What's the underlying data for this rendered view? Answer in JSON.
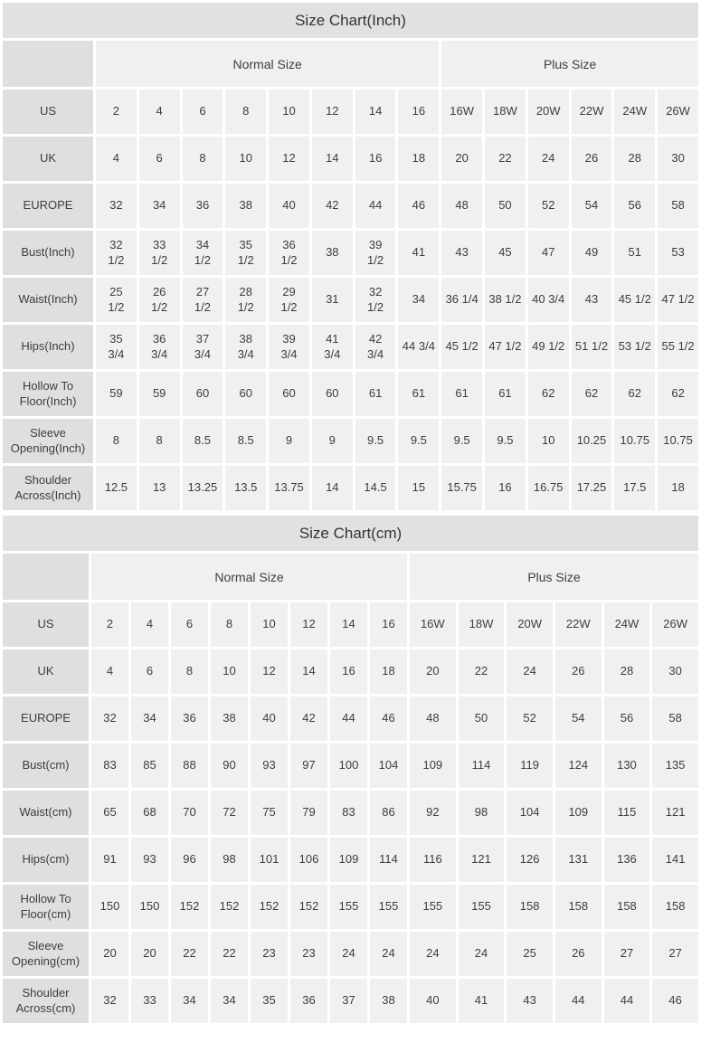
{
  "colors": {
    "title_bg": "#e1e1e1",
    "label_bg": "#dfdfdf",
    "cell_bg": "#f0f0f0",
    "gap": "#ffffff",
    "text": "#3d3d3d"
  },
  "tables": [
    {
      "title": "Size Chart(Inch)",
      "group_headers": [
        {
          "label": "Normal Size",
          "span": 8
        },
        {
          "label": "Plus Size",
          "span": 6
        }
      ],
      "rows": [
        {
          "label": "US",
          "values": [
            "2",
            "4",
            "6",
            "8",
            "10",
            "12",
            "14",
            "16",
            "16W",
            "18W",
            "20W",
            "22W",
            "24W",
            "26W"
          ]
        },
        {
          "label": "UK",
          "values": [
            "4",
            "6",
            "8",
            "10",
            "12",
            "14",
            "16",
            "18",
            "20",
            "22",
            "24",
            "26",
            "28",
            "30"
          ]
        },
        {
          "label": "EUROPE",
          "values": [
            "32",
            "34",
            "36",
            "38",
            "40",
            "42",
            "44",
            "46",
            "48",
            "50",
            "52",
            "54",
            "56",
            "58"
          ]
        },
        {
          "label": "Bust(Inch)",
          "values": [
            "32\n1/2",
            "33\n1/2",
            "34\n1/2",
            "35\n1/2",
            "36\n1/2",
            "38",
            "39\n1/2",
            "41",
            "43",
            "45",
            "47",
            "49",
            "51",
            "53"
          ]
        },
        {
          "label": "Waist(Inch)",
          "values": [
            "25\n1/2",
            "26\n1/2",
            "27\n1/2",
            "28\n1/2",
            "29\n1/2",
            "31",
            "32\n1/2",
            "34",
            "36 1/4",
            "38 1/2",
            "40 3/4",
            "43",
            "45 1/2",
            "47 1/2"
          ]
        },
        {
          "label": "Hips(Inch)",
          "values": [
            "35\n3/4",
            "36\n3/4",
            "37\n3/4",
            "38\n3/4",
            "39\n3/4",
            "41\n3/4",
            "42\n3/4",
            "44 3/4",
            "45 1/2",
            "47 1/2",
            "49 1/2",
            "51 1/2",
            "53 1/2",
            "55 1/2"
          ]
        },
        {
          "label": "Hollow To Floor(Inch)",
          "values": [
            "59",
            "59",
            "60",
            "60",
            "60",
            "60",
            "61",
            "61",
            "61",
            "61",
            "62",
            "62",
            "62",
            "62"
          ]
        },
        {
          "label": "Sleeve Opening(Inch)",
          "values": [
            "8",
            "8",
            "8.5",
            "8.5",
            "9",
            "9",
            "9.5",
            "9.5",
            "9.5",
            "9.5",
            "10",
            "10.25",
            "10.75",
            "10.75"
          ]
        },
        {
          "label": "Shoulder Across(Inch)",
          "values": [
            "12.5",
            "13",
            "13.25",
            "13.5",
            "13.75",
            "14",
            "14.5",
            "15",
            "15.75",
            "16",
            "16.75",
            "17.25",
            "17.5",
            "18"
          ]
        }
      ]
    },
    {
      "title": "Size Chart(cm)",
      "group_headers": [
        {
          "label": "Normal Size",
          "span": 8
        },
        {
          "label": "Plus Size",
          "span": 6
        }
      ],
      "rows": [
        {
          "label": "US",
          "values": [
            "2",
            "4",
            "6",
            "8",
            "10",
            "12",
            "14",
            "16",
            "16W",
            "18W",
            "20W",
            "22W",
            "24W",
            "26W"
          ]
        },
        {
          "label": "UK",
          "values": [
            "4",
            "6",
            "8",
            "10",
            "12",
            "14",
            "16",
            "18",
            "20",
            "22",
            "24",
            "26",
            "28",
            "30"
          ]
        },
        {
          "label": "EUROPE",
          "values": [
            "32",
            "34",
            "36",
            "38",
            "40",
            "42",
            "44",
            "46",
            "48",
            "50",
            "52",
            "54",
            "56",
            "58"
          ]
        },
        {
          "label": "Bust(cm)",
          "values": [
            "83",
            "85",
            "88",
            "90",
            "93",
            "97",
            "100",
            "104",
            "109",
            "114",
            "119",
            "124",
            "130",
            "135"
          ]
        },
        {
          "label": "Waist(cm)",
          "values": [
            "65",
            "68",
            "70",
            "72",
            "75",
            "79",
            "83",
            "86",
            "92",
            "98",
            "104",
            "109",
            "115",
            "121"
          ]
        },
        {
          "label": "Hips(cm)",
          "values": [
            "91",
            "93",
            "96",
            "98",
            "101",
            "106",
            "109",
            "114",
            "116",
            "121",
            "126",
            "131",
            "136",
            "141"
          ]
        },
        {
          "label": "Hollow To Floor(cm)",
          "values": [
            "150",
            "150",
            "152",
            "152",
            "152",
            "152",
            "155",
            "155",
            "155",
            "155",
            "158",
            "158",
            "158",
            "158"
          ]
        },
        {
          "label": "Sleeve Opening(cm)",
          "values": [
            "20",
            "20",
            "22",
            "22",
            "23",
            "23",
            "24",
            "24",
            "24",
            "24",
            "25",
            "26",
            "27",
            "27"
          ]
        },
        {
          "label": "Shoulder Across(cm)",
          "values": [
            "32",
            "33",
            "34",
            "34",
            "35",
            "36",
            "37",
            "38",
            "40",
            "41",
            "43",
            "44",
            "44",
            "46"
          ]
        }
      ]
    }
  ]
}
